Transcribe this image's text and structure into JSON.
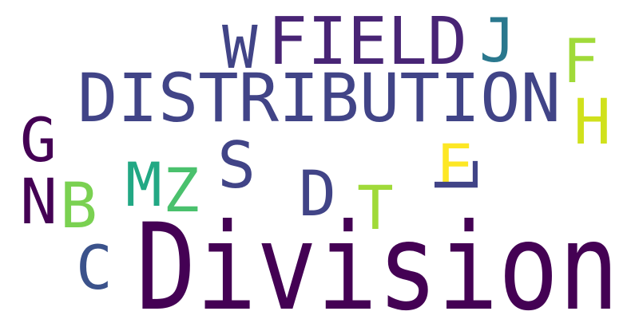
{
  "words": [
    {
      "key": "division",
      "text": "Division",
      "color": "#440154"
    },
    {
      "key": "field",
      "text": "FIELD",
      "color": "#482475"
    },
    {
      "key": "distribution",
      "text": "DISTRIBUTION",
      "color": "#414487"
    },
    {
      "key": "w",
      "text": "W",
      "color": "#414487"
    },
    {
      "key": "j",
      "text": "J",
      "color": "#2a788e"
    },
    {
      "key": "f",
      "text": "F",
      "color": "#a0da39"
    },
    {
      "key": "h",
      "text": "H",
      "color": "#d0e11c"
    },
    {
      "key": "g",
      "text": "G",
      "color": "#440154"
    },
    {
      "key": "n",
      "text": "N",
      "color": "#440154"
    },
    {
      "key": "b",
      "text": "B",
      "color": "#7ad151"
    },
    {
      "key": "m",
      "text": "M",
      "color": "#22a884"
    },
    {
      "key": "z",
      "text": "Z",
      "color": "#4ac16d"
    },
    {
      "key": "s",
      "text": "S",
      "color": "#414487"
    },
    {
      "key": "d",
      "text": "D",
      "color": "#414487"
    },
    {
      "key": "t",
      "text": "T",
      "color": "#a0da39"
    },
    {
      "key": "e",
      "text": "E",
      "color": "#fde725"
    },
    {
      "key": "l",
      "text": "L",
      "color": "#414487"
    },
    {
      "key": "c",
      "text": "C",
      "color": "#3b528b"
    }
  ]
}
